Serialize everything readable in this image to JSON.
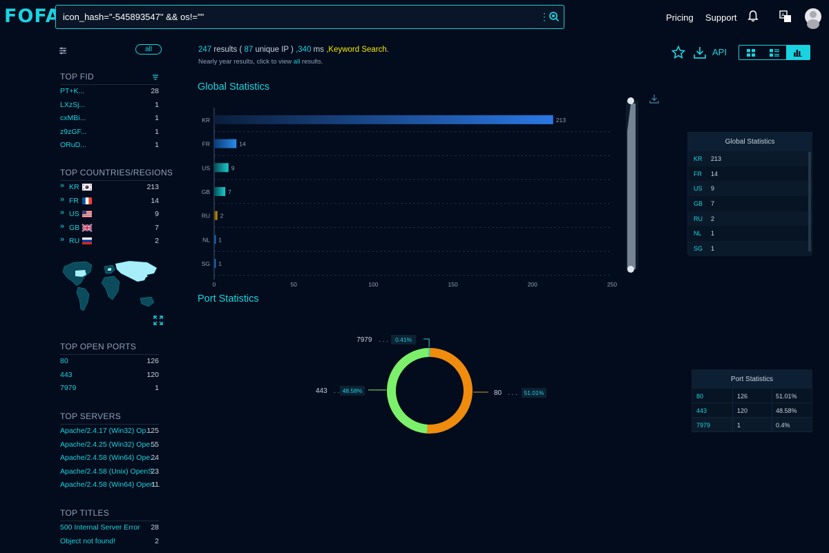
{
  "header": {
    "logo": "FOFA",
    "query": "icon_hash=\"-545893547\" && os!=\"\"",
    "pricing": "Pricing",
    "support": "Support"
  },
  "sidebar": {
    "all_label": "all",
    "top_fid": {
      "title": "TOP FID",
      "items": [
        {
          "label": "PT+K...",
          "count": "28"
        },
        {
          "label": "LXzSj...",
          "count": "1"
        },
        {
          "label": "cxMBi...",
          "count": "1"
        },
        {
          "label": "z9zGF...",
          "count": "1"
        },
        {
          "label": "ORuD...",
          "count": "1"
        }
      ]
    },
    "top_countries": {
      "title": "TOP COUNTRIES/REGIONS",
      "items": [
        {
          "code": "KR",
          "count": "213"
        },
        {
          "code": "FR",
          "count": "14"
        },
        {
          "code": "US",
          "count": "9"
        },
        {
          "code": "GB",
          "count": "7"
        },
        {
          "code": "RU",
          "count": "2"
        }
      ]
    },
    "top_ports": {
      "title": "TOP OPEN PORTS",
      "items": [
        {
          "label": "80",
          "count": "126"
        },
        {
          "label": "443",
          "count": "120"
        },
        {
          "label": "7979",
          "count": "1"
        }
      ]
    },
    "top_servers": {
      "title": "TOP SERVERS",
      "items": [
        {
          "label": "Apache/2.4.17 (Win32) Op...",
          "count": "125"
        },
        {
          "label": "Apache/2.4.25 (Win32) Ope...",
          "count": "55"
        },
        {
          "label": "Apache/2.4.58 (Win64) Ope...",
          "count": "24"
        },
        {
          "label": "Apache/2.4.58 (Unix) OpenS...",
          "count": "23"
        },
        {
          "label": "Apache/2.4.58 (Win64) Open...",
          "count": "11"
        }
      ]
    },
    "top_titles": {
      "title": "TOP TITLES",
      "items": [
        {
          "label": "500 Internal Server Error",
          "count": "28"
        },
        {
          "label": "Object not found!",
          "count": "2"
        }
      ]
    }
  },
  "summary": {
    "results": "247",
    "results_label": " results ( ",
    "unique": "87",
    "unique_label": " unique IP ) ",
    "ms": ",340",
    "ms_label": " ms ",
    "keyword": ",Keyword Search",
    "dot": ".",
    "sub_prefix": "Nearly year results, click to view ",
    "sub_all": "all",
    "sub_suffix": " results."
  },
  "toolbar": {
    "api": "API"
  },
  "global_stats": {
    "title": "Global Statistics",
    "table_title": "Global Statistics"
  },
  "port_stats": {
    "title": "Port Statistics",
    "table_title": "Port Statistics",
    "rows": [
      {
        "port": "80",
        "count": "126",
        "pct": "51.01%"
      },
      {
        "port": "443",
        "count": "120",
        "pct": "48.58%"
      },
      {
        "port": "7979",
        "count": "1",
        "pct": "0.4%"
      }
    ]
  },
  "colors": {
    "accent": "#19d3e0",
    "bar_blue": "#2a78e4",
    "pie_orange": "#ef8c0e",
    "pie_green": "#7cf06b"
  },
  "chart_data": [
    {
      "type": "bar",
      "title": "Global Statistics",
      "orientation": "horizontal",
      "categories": [
        "KR",
        "FR",
        "US",
        "GB",
        "RU",
        "NL",
        "SG"
      ],
      "values": [
        213,
        14,
        9,
        7,
        2,
        1,
        1
      ],
      "xlim": [
        0,
        250
      ],
      "xticks": [
        "0",
        "50",
        "100",
        "150",
        "200",
        "250"
      ]
    },
    {
      "type": "pie",
      "title": "Port Statistics",
      "labels": [
        "80",
        "443",
        "7979"
      ],
      "values": [
        51.01,
        48.58,
        0.41
      ],
      "pct_labels": [
        "51.01%",
        "48.58%",
        "0.41%"
      ]
    }
  ]
}
